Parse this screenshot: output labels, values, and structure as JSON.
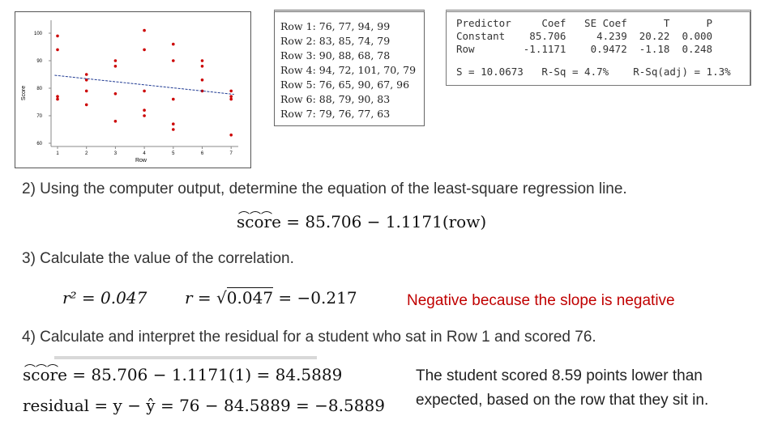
{
  "plot": {
    "y_label": "Score",
    "x_label": "Row",
    "y_ticks": [
      "100",
      "90",
      "80",
      "70",
      "60"
    ],
    "x_ticks": [
      "1",
      "2",
      "3",
      "4",
      "5",
      "6",
      "7"
    ]
  },
  "data_table": {
    "rows": [
      "Row 1: 76, 77, 94, 99",
      "Row 2: 83, 85, 74, 79",
      "Row 3: 90, 88, 68, 78",
      "Row 4: 94, 72, 101, 70, 79",
      "Row 5: 76, 65, 90, 67, 96",
      "Row 6: 88, 79, 90, 83",
      "Row 7: 79, 76, 77, 63"
    ]
  },
  "regression_output": {
    "lines": [
      "Predictor     Coef   SE Coef      T      P",
      "Constant    85.706     4.239  20.22  0.000",
      "Row        -1.1171    0.9472  -1.18  0.248",
      "S = 10.0673   R-Sq = 4.7%    R-Sq(adj) = 1.3%"
    ]
  },
  "q2": {
    "text": "2) Using the computer output, determine the equation of the least-square regression line.",
    "lhs": "score",
    "rhs": "= 85.706 − 1.1171(row)"
  },
  "q3": {
    "text": "3) Calculate the value of the correlation.",
    "r2": "r² = 0.047",
    "r_lhs": "r =",
    "r_rad": "0.047",
    "r_rhs": "= −0.217",
    "note": "Negative because the slope is negative"
  },
  "q4": {
    "text": "4) Calculate and interpret the residual for a student who sat in Row 1 and scored 76.",
    "lhs": "score",
    "rhs": "= 85.706 − 1.1171(1) = 84.5889",
    "residual": "residual = y − ŷ = 76 − 84.5889 = −8.5889",
    "interp_1": "The student scored 8.59 points lower than",
    "interp_2": "expected, based on the row that they sit in."
  },
  "colors": {
    "point": "#cc0000",
    "line": "#1f3a93",
    "note": "#c00000"
  }
}
